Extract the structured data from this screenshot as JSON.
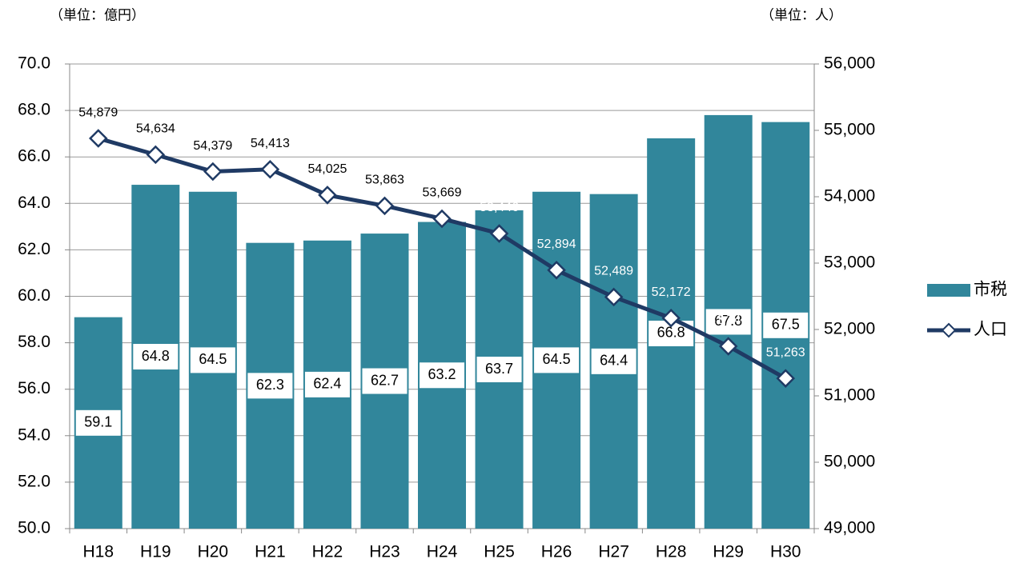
{
  "chart_data": {
    "type": "bar-line",
    "left_unit": "（単位：億円）",
    "right_unit": "（単位：人）",
    "categories": [
      "H18",
      "H19",
      "H20",
      "H21",
      "H22",
      "H23",
      "H24",
      "H25",
      "H26",
      "H27",
      "H28",
      "H29",
      "H30"
    ],
    "series": [
      {
        "name": "市税",
        "type": "bar",
        "color": "#31869b",
        "values": [
          59.1,
          64.8,
          64.5,
          62.3,
          62.4,
          62.7,
          63.2,
          63.7,
          64.5,
          64.4,
          66.8,
          67.8,
          67.5
        ]
      },
      {
        "name": "人口",
        "type": "line",
        "axis": "y2",
        "color": "#1f3a64",
        "values": [
          54879,
          54634,
          54379,
          54413,
          54025,
          53863,
          53669,
          53446,
          52894,
          52489,
          52172,
          51747,
          51263
        ],
        "value_labels": [
          "54,879",
          "54,634",
          "54,379",
          "54,413",
          "54,025",
          "53,863",
          "53,669",
          "53,446",
          "52,894",
          "52,489",
          "52,172",
          "51,747",
          "51,263"
        ]
      }
    ],
    "ylim": [
      50,
      70
    ],
    "yticks": [
      {
        "value": 50,
        "label": "50.0"
      },
      {
        "value": 52,
        "label": "52.0"
      },
      {
        "value": 54,
        "label": "54.0"
      },
      {
        "value": 56,
        "label": "56.0"
      },
      {
        "value": 58,
        "label": "58.0"
      },
      {
        "value": 60,
        "label": "60.0"
      },
      {
        "value": 62,
        "label": "62.0"
      },
      {
        "value": 64,
        "label": "64.0"
      },
      {
        "value": 66,
        "label": "66.0"
      },
      {
        "value": 68,
        "label": "68.0"
      },
      {
        "value": 70,
        "label": "70.0"
      }
    ],
    "y2lim": [
      49000,
      56000
    ],
    "y2ticks": [
      {
        "value": 49000,
        "label": "49,000"
      },
      {
        "value": 50000,
        "label": "50,000"
      },
      {
        "value": 51000,
        "label": "51,000"
      },
      {
        "value": 52000,
        "label": "52,000"
      },
      {
        "value": 53000,
        "label": "53,000"
      },
      {
        "value": 54000,
        "label": "54,000"
      },
      {
        "value": 55000,
        "label": "55,000"
      },
      {
        "value": 56000,
        "label": "56,000"
      }
    ],
    "grid": true,
    "legend": "right"
  }
}
